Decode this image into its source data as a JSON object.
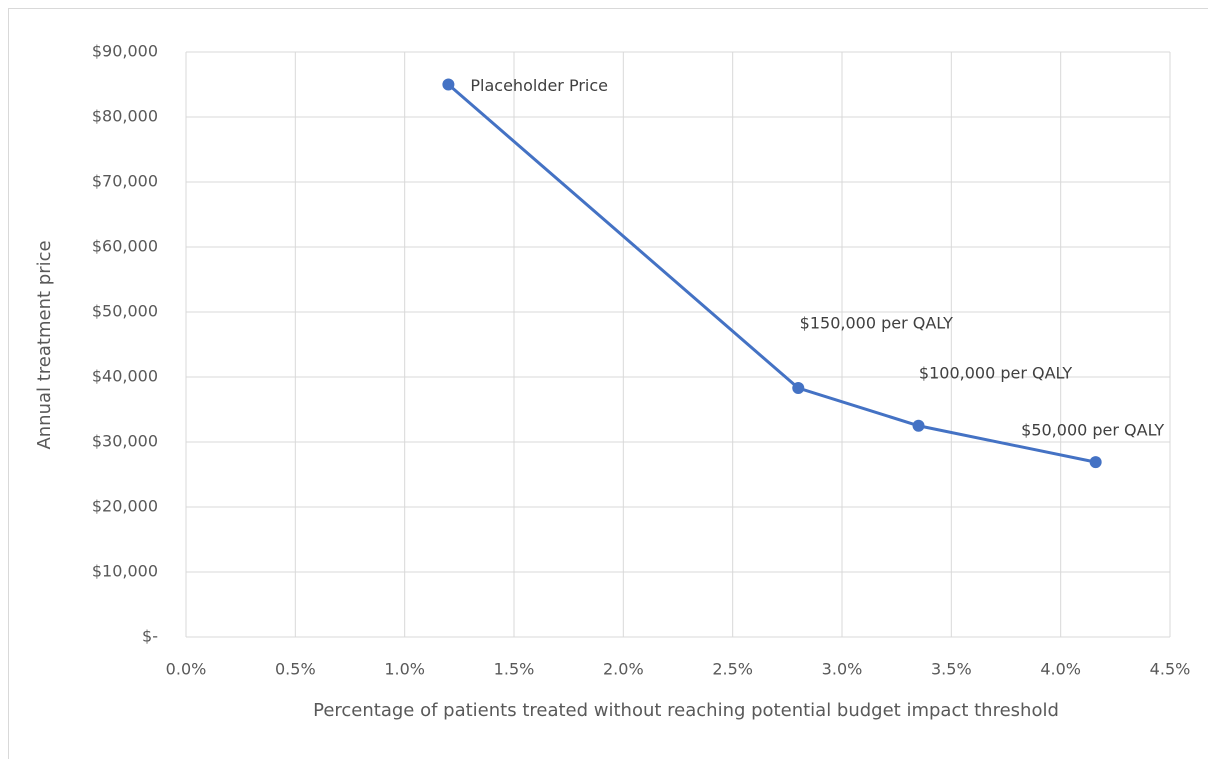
{
  "chart_data": {
    "type": "line",
    "xlabel": "Percentage of patients treated without reaching potential budget impact threshold",
    "ylabel": "Annual treatment price",
    "x": [
      1.2,
      2.8,
      3.35,
      4.16
    ],
    "values": [
      85000,
      38300,
      32500,
      26900
    ],
    "point_labels": [
      "Placeholder Price",
      "$150,000 per QALY",
      "$100,000 per QALY",
      "$50,000 per QALY"
    ],
    "color": "#4472c4",
    "xlim": [
      0,
      4.5
    ],
    "xticks": [
      {
        "value": 0,
        "label": "0.0%"
      },
      {
        "value": 0.5,
        "label": "0.5%"
      },
      {
        "value": 1,
        "label": "1.0%"
      },
      {
        "value": 1.5,
        "label": "1.5%"
      },
      {
        "value": 2,
        "label": "2.0%"
      },
      {
        "value": 2.5,
        "label": "2.5%"
      },
      {
        "value": 3,
        "label": "3.0%"
      },
      {
        "value": 3.5,
        "label": "3.5%"
      },
      {
        "value": 4,
        "label": "4.0%"
      },
      {
        "value": 4.5,
        "label": "4.5%"
      }
    ],
    "ylim": [
      0,
      90000
    ],
    "yticks": [
      {
        "value": 0,
        "label": "$-"
      },
      {
        "value": 10000,
        "label": "$10,000"
      },
      {
        "value": 20000,
        "label": "$20,000"
      },
      {
        "value": 30000,
        "label": "$30,000"
      },
      {
        "value": 40000,
        "label": "$40,000"
      },
      {
        "value": 50000,
        "label": "$50,000"
      },
      {
        "value": 60000,
        "label": "$60,000"
      },
      {
        "value": 70000,
        "label": "$70,000"
      },
      {
        "value": 80000,
        "label": "$80,000"
      },
      {
        "value": 90000,
        "label": "$90,000"
      }
    ],
    "grid": true
  }
}
